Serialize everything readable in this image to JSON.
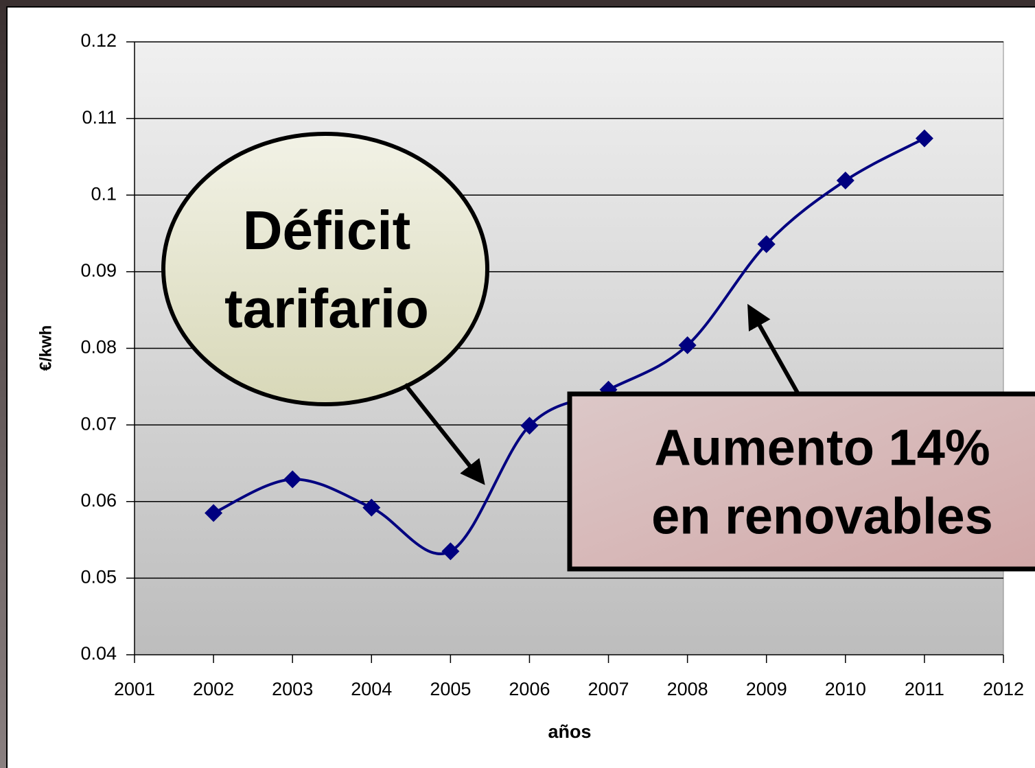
{
  "chart_data": {
    "type": "line",
    "x_label": "años",
    "y_label": "€/kwh",
    "x": [
      2002,
      2003,
      2004,
      2005,
      2006,
      2007,
      2008,
      2009,
      2010,
      2011
    ],
    "series": [
      {
        "name": null,
        "color": "#000080",
        "values": [
          0.0585,
          0.0629,
          0.0592,
          0.0535,
          0.0699,
          0.0746,
          0.0804,
          0.0936,
          0.1019,
          0.1074
        ]
      }
    ],
    "xlim": [
      2001,
      2012
    ],
    "xticks": [
      2001,
      2002,
      2003,
      2004,
      2005,
      2006,
      2007,
      2008,
      2009,
      2010,
      2011,
      2012
    ],
    "ylim": [
      0.04,
      0.12
    ],
    "yticks": [
      0.04,
      0.05,
      0.06,
      0.07,
      0.08,
      0.09,
      0.1,
      0.11,
      0.12
    ],
    "grid": true,
    "annotations": [
      {
        "lines": [
          "Déficit",
          "tarifario"
        ]
      },
      {
        "lines": [
          "Aumento 14%",
          "en renovables"
        ]
      }
    ]
  }
}
